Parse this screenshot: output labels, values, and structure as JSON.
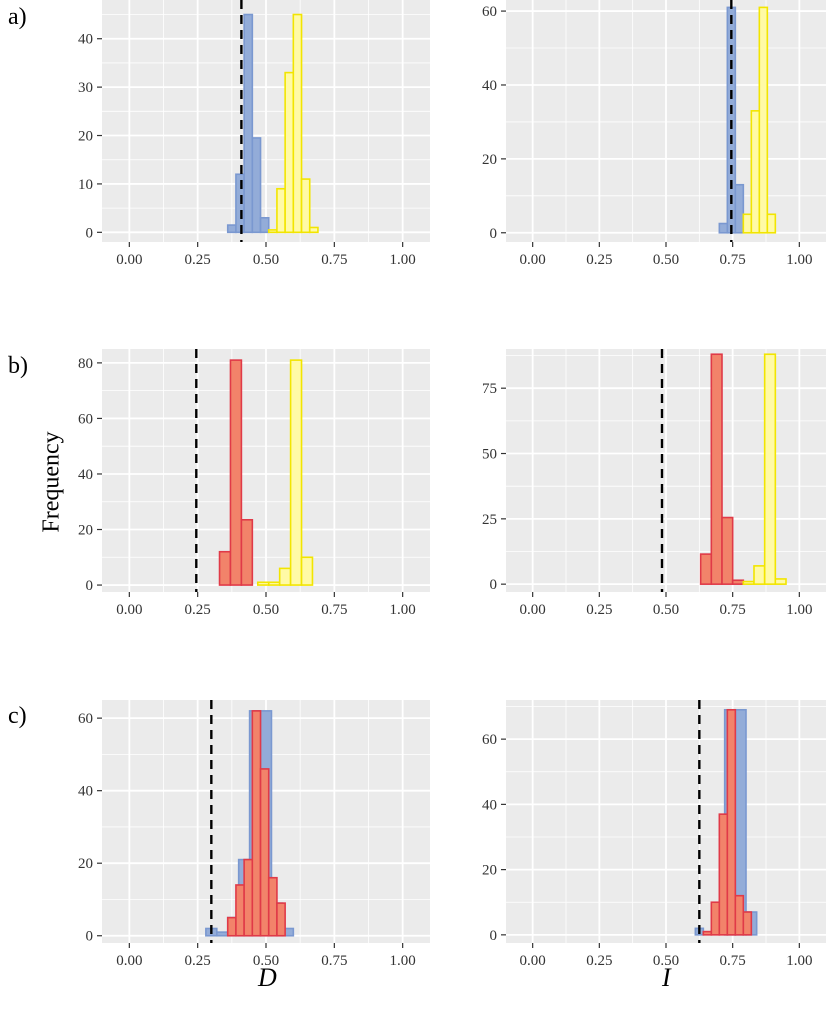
{
  "labels": {
    "row_labels": [
      "a)",
      "b)",
      "c)"
    ],
    "y_axis_title": "Frequency",
    "x_axis_left": "D",
    "x_axis_right": "I"
  },
  "colors": {
    "panel_bg": "#EBEBEB",
    "grid": "#FFFFFF",
    "blue_fill": "#93ACD8",
    "blue_edge": "#7A98D0",
    "yellow_fill": "#FFFAA6",
    "yellow_edge": "#F2E500",
    "red_fill": "#F2836A",
    "red_edge": "#E03A48",
    "dashed": "#000000"
  },
  "chart_data": [
    {
      "id": "a-D",
      "type": "histogram",
      "xlabel": "D",
      "xlim": [
        -0.1,
        1.1
      ],
      "ylim": [
        -2,
        48
      ],
      "xticks": [
        0,
        0.25,
        0.5,
        0.75,
        1
      ],
      "xtick_labels": [
        "0.00",
        "0.25",
        "0.50",
        "0.75",
        "1.00"
      ],
      "yticks": [
        0,
        10,
        20,
        30,
        40
      ],
      "ytick_labels": [
        "0",
        "10",
        "20",
        "30",
        "40"
      ],
      "ref_line": 0.41,
      "series": [
        {
          "name": "blue",
          "bins": [
            [
              0.36,
              0.39,
              1.5
            ],
            [
              0.39,
              0.42,
              12
            ],
            [
              0.42,
              0.45,
              45
            ],
            [
              0.45,
              0.48,
              19.5
            ],
            [
              0.48,
              0.51,
              3
            ]
          ]
        },
        {
          "name": "yellow",
          "bins": [
            [
              0.51,
              0.54,
              0.5
            ],
            [
              0.54,
              0.57,
              9
            ],
            [
              0.57,
              0.6,
              33
            ],
            [
              0.6,
              0.63,
              45
            ],
            [
              0.63,
              0.66,
              11
            ],
            [
              0.66,
              0.69,
              1
            ]
          ]
        }
      ]
    },
    {
      "id": "a-I",
      "type": "histogram",
      "xlabel": "I",
      "xlim": [
        -0.1,
        1.1
      ],
      "ylim": [
        -2.5,
        63
      ],
      "xticks": [
        0,
        0.25,
        0.5,
        0.75,
        1
      ],
      "xtick_labels": [
        "0.00",
        "0.25",
        "0.50",
        "0.75",
        "1.00"
      ],
      "yticks": [
        0,
        20,
        40,
        60
      ],
      "ytick_labels": [
        "0",
        "20",
        "40",
        "60"
      ],
      "ref_line": 0.745,
      "series": [
        {
          "name": "blue",
          "bins": [
            [
              0.7,
              0.73,
              2.5
            ],
            [
              0.73,
              0.76,
              61
            ],
            [
              0.76,
              0.79,
              13
            ]
          ]
        },
        {
          "name": "yellow",
          "bins": [
            [
              0.79,
              0.82,
              5
            ],
            [
              0.82,
              0.85,
              33
            ],
            [
              0.85,
              0.88,
              61
            ],
            [
              0.88,
              0.91,
              5
            ]
          ]
        }
      ]
    },
    {
      "id": "b-D",
      "type": "histogram",
      "xlabel": "D",
      "xlim": [
        -0.1,
        1.1
      ],
      "ylim": [
        -2.5,
        85
      ],
      "xticks": [
        0,
        0.25,
        0.5,
        0.75,
        1
      ],
      "xtick_labels": [
        "0.00",
        "0.25",
        "0.50",
        "0.75",
        "1.00"
      ],
      "yticks": [
        0,
        20,
        40,
        60,
        80
      ],
      "ytick_labels": [
        "0",
        "20",
        "40",
        "60",
        "80"
      ],
      "ref_line": 0.245,
      "series": [
        {
          "name": "red",
          "bins": [
            [
              0.33,
              0.37,
              12
            ],
            [
              0.37,
              0.41,
              81
            ],
            [
              0.41,
              0.45,
              23.5
            ]
          ]
        },
        {
          "name": "yellow",
          "bins": [
            [
              0.47,
              0.51,
              1
            ],
            [
              0.51,
              0.55,
              1
            ],
            [
              0.55,
              0.59,
              6
            ],
            [
              0.59,
              0.63,
              81
            ],
            [
              0.63,
              0.67,
              10
            ]
          ]
        }
      ]
    },
    {
      "id": "b-I",
      "type": "histogram",
      "xlabel": "I",
      "xlim": [
        -0.1,
        1.1
      ],
      "ylim": [
        -3,
        90
      ],
      "xticks": [
        0,
        0.25,
        0.5,
        0.75,
        1
      ],
      "xtick_labels": [
        "0.00",
        "0.25",
        "0.50",
        "0.75",
        "1.00"
      ],
      "yticks": [
        0,
        25,
        50,
        75
      ],
      "ytick_labels": [
        "0",
        "25",
        "50",
        "75"
      ],
      "ref_line": 0.485,
      "series": [
        {
          "name": "red",
          "bins": [
            [
              0.63,
              0.67,
              11.5
            ],
            [
              0.67,
              0.71,
              88
            ],
            [
              0.71,
              0.75,
              25.5
            ],
            [
              0.75,
              0.79,
              1.5
            ]
          ]
        },
        {
          "name": "yellow",
          "bins": [
            [
              0.79,
              0.83,
              1
            ],
            [
              0.83,
              0.87,
              7
            ],
            [
              0.87,
              0.91,
              88
            ],
            [
              0.91,
              0.95,
              2
            ]
          ]
        }
      ]
    },
    {
      "id": "c-D",
      "type": "histogram",
      "xlabel": "D",
      "xlim": [
        -0.1,
        1.1
      ],
      "ylim": [
        -2,
        65
      ],
      "xticks": [
        0,
        0.25,
        0.5,
        0.75,
        1
      ],
      "xtick_labels": [
        "0.00",
        "0.25",
        "0.50",
        "0.75",
        "1.00"
      ],
      "yticks": [
        0,
        20,
        40,
        60
      ],
      "ytick_labels": [
        "0",
        "20",
        "40",
        "60"
      ],
      "ref_line": 0.3,
      "series": [
        {
          "name": "blue",
          "bins": [
            [
              0.28,
              0.32,
              2
            ],
            [
              0.32,
              0.36,
              1
            ],
            [
              0.36,
              0.4,
              5
            ],
            [
              0.4,
              0.44,
              21
            ],
            [
              0.44,
              0.48,
              62
            ],
            [
              0.48,
              0.52,
              62
            ],
            [
              0.52,
              0.56,
              9
            ],
            [
              0.56,
              0.6,
              2
            ]
          ]
        },
        {
          "name": "red",
          "bins": [
            [
              0.36,
              0.39,
              5
            ],
            [
              0.39,
              0.42,
              14
            ],
            [
              0.42,
              0.45,
              21
            ],
            [
              0.45,
              0.48,
              62
            ],
            [
              0.48,
              0.51,
              46
            ],
            [
              0.51,
              0.54,
              16
            ],
            [
              0.54,
              0.57,
              9
            ]
          ]
        }
      ]
    },
    {
      "id": "c-I",
      "type": "histogram",
      "xlabel": "I",
      "xlim": [
        -0.1,
        1.1
      ],
      "ylim": [
        -2.5,
        72
      ],
      "xticks": [
        0,
        0.25,
        0.5,
        0.75,
        1
      ],
      "xtick_labels": [
        "0.00",
        "0.25",
        "0.50",
        "0.75",
        "1.00"
      ],
      "yticks": [
        0,
        20,
        40,
        60
      ],
      "ytick_labels": [
        "0",
        "20",
        "40",
        "60"
      ],
      "ref_line": 0.625,
      "series": [
        {
          "name": "blue",
          "bins": [
            [
              0.61,
              0.64,
              2
            ],
            [
              0.72,
              0.76,
              69
            ],
            [
              0.76,
              0.8,
              69
            ],
            [
              0.8,
              0.84,
              7
            ]
          ]
        },
        {
          "name": "red",
          "bins": [
            [
              0.64,
              0.67,
              1
            ],
            [
              0.67,
              0.7,
              10
            ],
            [
              0.7,
              0.73,
              37
            ],
            [
              0.73,
              0.76,
              69
            ],
            [
              0.76,
              0.79,
              12
            ],
            [
              0.79,
              0.82,
              7
            ]
          ]
        }
      ]
    }
  ]
}
